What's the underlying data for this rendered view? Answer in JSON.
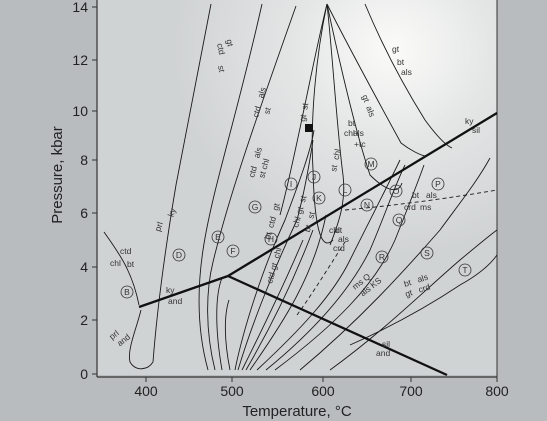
{
  "diagram": {
    "x_axis": {
      "title": "Temperature, °C",
      "ticks": [
        "400",
        "500",
        "600",
        "700",
        "800"
      ]
    },
    "y_axis": {
      "title": "Pressure, kbar",
      "ticks": [
        "0",
        "2",
        "4",
        "6",
        "8",
        "10",
        "12",
        "14"
      ]
    },
    "phase_labels": [
      [
        "prl",
        "ky"
      ],
      [
        "ctd",
        "chl",
        "bt"
      ],
      [
        "prl",
        "and"
      ],
      [
        "ky",
        "and"
      ],
      [
        "sil",
        "and"
      ],
      [
        "ky",
        "sil"
      ],
      [
        "ctd",
        "gt"
      ],
      [
        "st"
      ],
      [
        "ctd",
        "als",
        "st"
      ],
      [
        "ctd",
        "als",
        "st chl"
      ],
      [
        "gt",
        "st"
      ],
      [
        "bt",
        "chl",
        "als",
        "+tc"
      ],
      [
        "gt",
        "als"
      ],
      [
        "gt",
        "bt",
        "als"
      ],
      [
        "bt",
        "ctd",
        "gt"
      ],
      [
        "chl",
        "gt",
        "st"
      ],
      [
        "bt",
        "st"
      ],
      [
        "ctd",
        "gt",
        "chl"
      ],
      [
        "chl",
        "bt",
        "als",
        "crd"
      ],
      [
        "st",
        "chl"
      ],
      [
        "bt",
        "als",
        "crd",
        "ms"
      ],
      [
        "ms Q",
        "als KS"
      ],
      [
        "bt",
        "als",
        "gt",
        "crd"
      ]
    ],
    "field_letters": [
      "B",
      "D",
      "E",
      "F",
      "G",
      "H",
      "I",
      "J",
      "K",
      "L",
      "M",
      "N",
      "O",
      "P",
      "Q",
      "R",
      "S",
      "T"
    ]
  },
  "colors": {
    "background": "#b8bcbe",
    "plot": "#e2e4e4",
    "line": "#111111"
  }
}
